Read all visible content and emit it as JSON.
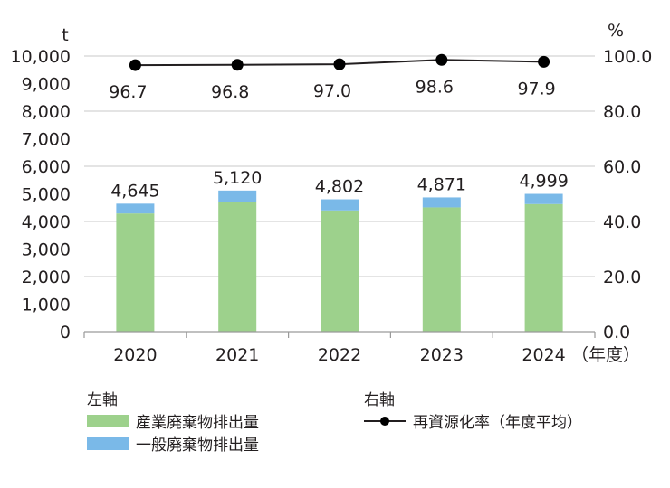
{
  "chart_data": {
    "type": "bar+line",
    "categories": [
      "2020",
      "2021",
      "2022",
      "2023",
      "2024"
    ],
    "x_unit": "（年度）",
    "left_axis": {
      "unit": "t",
      "ylim": [
        0,
        10000
      ],
      "ticks": [
        "0",
        "1,000",
        "2,000",
        "3,000",
        "4,000",
        "5,000",
        "6,000",
        "7,000",
        "8,000",
        "9,000",
        "10,000"
      ]
    },
    "right_axis": {
      "unit": "%",
      "ylim": [
        0,
        100
      ],
      "ticks": [
        "0.0",
        "20.0",
        "40.0",
        "60.0",
        "80.0",
        "100.0"
      ]
    },
    "series": [
      {
        "name": "産業廃棄物排出量",
        "axis": "left",
        "kind": "stacked-bar",
        "color": "#9dd18c",
        "values": [
          4290,
          4700,
          4400,
          4510,
          4630
        ]
      },
      {
        "name": "一般廃棄物排出量",
        "axis": "left",
        "kind": "stacked-bar",
        "color": "#7ab9e8",
        "values": [
          355,
          420,
          402,
          361,
          369
        ]
      },
      {
        "name": "再資源化率（年度平均）",
        "axis": "right",
        "kind": "line",
        "color": "#231f20",
        "values": [
          96.7,
          96.8,
          97.0,
          98.6,
          97.9
        ]
      }
    ],
    "bar_total_labels": [
      "4,645",
      "5,120",
      "4,802",
      "4,871",
      "4,999"
    ],
    "line_labels": [
      "96.7",
      "96.8",
      "97.0",
      "98.6",
      "97.9"
    ],
    "grid": true,
    "legend": {
      "left_title": "左軸",
      "right_title": "右軸",
      "placement": "bottom"
    }
  }
}
